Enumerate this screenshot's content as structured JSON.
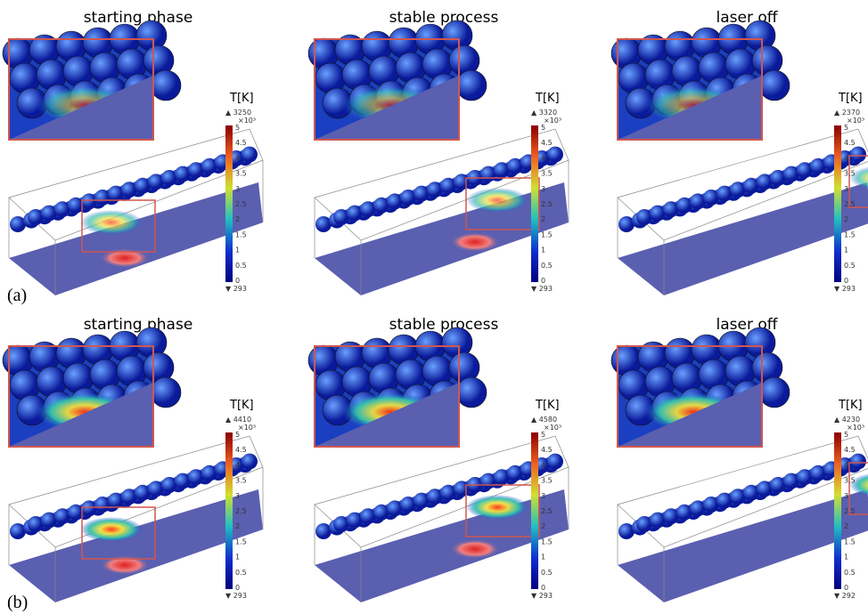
{
  "rows": [
    {
      "label": "(a)",
      "panels": [
        {
          "title": "starting phase",
          "unit": "T[K]",
          "max": "▲ 3250",
          "scale": "×10³",
          "ticks": [
            "5",
            "4.5",
            "4",
            "3.5",
            "3",
            "2.5",
            "2",
            "1.5",
            "1",
            "0.5",
            "0"
          ],
          "min": "▼ 293"
        },
        {
          "title": "stable process",
          "unit": "T[K]",
          "max": "▲ 3320",
          "scale": "×10³",
          "ticks": [
            "5",
            "4.5",
            "4",
            "3.5",
            "3",
            "2.5",
            "2",
            "1.5",
            "1",
            "0.5",
            "0"
          ],
          "min": "▼ 293"
        },
        {
          "title": "laser off",
          "unit": "T[K]",
          "max": "▲ 2370",
          "scale": "×10³",
          "ticks": [
            "5",
            "4.5",
            "4",
            "3.5",
            "3",
            "2.5",
            "2",
            "1.5",
            "1",
            "0.5",
            "0"
          ],
          "min": "▼ 293"
        }
      ]
    },
    {
      "label": "(b)",
      "panels": [
        {
          "title": "starting phase",
          "unit": "T[K]",
          "max": "▲ 4410",
          "scale": "×10³",
          "ticks": [
            "5",
            "4.5",
            "4",
            "3.5",
            "3",
            "2.5",
            "2",
            "1.5",
            "1",
            "0.5",
            "0"
          ],
          "min": "▼ 293"
        },
        {
          "title": "stable process",
          "unit": "T[K]",
          "max": "▲ 4580",
          "scale": "×10³",
          "ticks": [
            "5",
            "4.5",
            "4",
            "3.5",
            "3",
            "2.5",
            "2",
            "1.5",
            "1",
            "0.5",
            "0"
          ],
          "min": "▼ 293"
        },
        {
          "title": "laser off",
          "unit": "T[K]",
          "max": "▲ 4230",
          "scale": "×10³",
          "ticks": [
            "5",
            "4.5",
            "4",
            "3.5",
            "3",
            "2.5",
            "2",
            "1.5",
            "1",
            "0.5",
            "0"
          ],
          "min": "▼ 292"
        }
      ]
    }
  ]
}
